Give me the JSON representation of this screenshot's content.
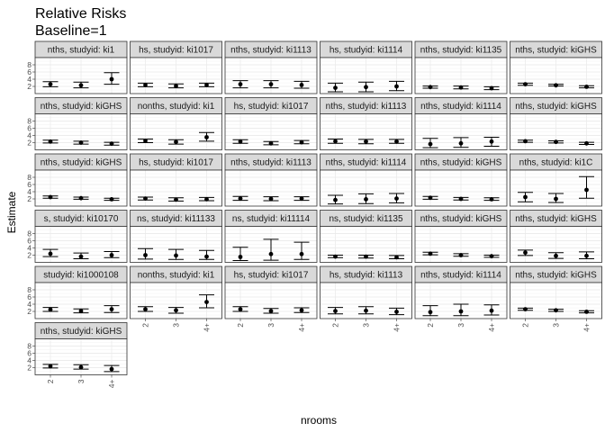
{
  "chart_data": {
    "type": "point-range-facets",
    "title": "Relative Risks",
    "subtitle": "Baseline=1",
    "xlabel": "nrooms",
    "ylabel": "Estimate",
    "categories": [
      "2",
      "3",
      "4+"
    ],
    "y_ticks": [
      "2",
      "4",
      "6",
      "8"
    ],
    "ylim": [
      0,
      10
    ],
    "grid": true,
    "panels": [
      {
        "strip": "nths, studyid: ki1",
        "estimates": [
          2.6,
          2.3,
          4.0
        ],
        "lower": [
          1.9,
          1.6,
          2.6
        ],
        "upper": [
          3.3,
          3.2,
          5.8
        ]
      },
      {
        "strip": "hs, studyid: ki1017",
        "estimates": [
          2.4,
          2.1,
          2.4
        ],
        "lower": [
          1.9,
          1.6,
          1.9
        ],
        "upper": [
          2.9,
          2.7,
          2.9
        ]
      },
      {
        "strip": "nths, studyid: ki1113",
        "estimates": [
          2.6,
          2.6,
          2.4
        ],
        "lower": [
          1.6,
          1.6,
          1.5
        ],
        "upper": [
          3.6,
          3.6,
          3.4
        ]
      },
      {
        "strip": "hs, studyid: ki1114",
        "estimates": [
          1.6,
          1.8,
          2.0
        ],
        "lower": [
          0.5,
          0.5,
          0.8
        ],
        "upper": [
          2.9,
          3.2,
          3.4
        ]
      },
      {
        "strip": "nths, studyid: ki1135",
        "estimates": [
          1.8,
          1.7,
          1.5
        ],
        "lower": [
          1.5,
          1.3,
          1.1
        ],
        "upper": [
          2.1,
          2.1,
          1.9
        ]
      },
      {
        "strip": "nths, studyid: kiGHS",
        "estimates": [
          2.6,
          2.3,
          1.9
        ],
        "lower": [
          2.3,
          2.1,
          1.6
        ],
        "upper": [
          2.9,
          2.6,
          2.2
        ]
      },
      {
        "strip": "nths, studyid: kiGHS",
        "estimates": [
          2.3,
          2.0,
          1.7
        ],
        "lower": [
          1.9,
          1.6,
          1.3
        ],
        "upper": [
          2.7,
          2.4,
          2.1
        ]
      },
      {
        "strip": "nonths, studyid: ki1",
        "estimates": [
          2.5,
          2.2,
          3.5
        ],
        "lower": [
          2.0,
          1.6,
          2.4
        ],
        "upper": [
          3.0,
          2.8,
          4.8
        ]
      },
      {
        "strip": "hs, studyid: ki1017",
        "estimates": [
          2.3,
          1.8,
          2.1
        ],
        "lower": [
          1.8,
          1.4,
          1.7
        ],
        "upper": [
          2.8,
          2.3,
          2.6
        ]
      },
      {
        "strip": "nths, studyid: ki1113",
        "estimates": [
          2.4,
          2.3,
          2.3
        ],
        "lower": [
          1.8,
          1.7,
          1.8
        ],
        "upper": [
          3.0,
          2.9,
          2.9
        ]
      },
      {
        "strip": "nths, studyid: ki1114",
        "estimates": [
          1.6,
          1.8,
          2.3
        ],
        "lower": [
          0.6,
          0.7,
          1.0
        ],
        "upper": [
          3.2,
          3.4,
          3.5
        ]
      },
      {
        "strip": "nths, studyid: kiGHS",
        "estimates": [
          2.4,
          2.2,
          1.8
        ],
        "lower": [
          2.1,
          1.9,
          1.5
        ],
        "upper": [
          2.7,
          2.5,
          2.1
        ]
      },
      {
        "strip": "nths, studyid: kiGHS",
        "estimates": [
          2.5,
          2.2,
          1.9
        ],
        "lower": [
          2.2,
          1.9,
          1.6
        ],
        "upper": [
          2.8,
          2.5,
          2.2
        ]
      },
      {
        "strip": "hs, studyid: ki1017",
        "estimates": [
          2.1,
          1.8,
          1.9
        ],
        "lower": [
          1.7,
          1.4,
          1.5
        ],
        "upper": [
          2.5,
          2.3,
          2.4
        ]
      },
      {
        "strip": "nths, studyid: ki1113",
        "estimates": [
          2.1,
          2.0,
          2.1
        ],
        "lower": [
          1.6,
          1.5,
          1.6
        ],
        "upper": [
          2.7,
          2.6,
          2.6
        ]
      },
      {
        "strip": "nths, studyid: ki1114",
        "estimates": [
          1.7,
          1.9,
          2.1
        ],
        "lower": [
          0.6,
          0.7,
          0.9
        ],
        "upper": [
          3.0,
          3.4,
          3.5
        ]
      },
      {
        "strip": "nths, studyid: kiGHS",
        "estimates": [
          2.3,
          2.0,
          1.9
        ],
        "lower": [
          1.9,
          1.7,
          1.6
        ],
        "upper": [
          2.7,
          2.4,
          2.3
        ]
      },
      {
        "strip": "nths, studyid: ki1C",
        "estimates": [
          2.5,
          2.0,
          4.5
        ],
        "lower": [
          1.2,
          1.0,
          2.2
        ],
        "upper": [
          3.8,
          3.5,
          8.2
        ]
      },
      {
        "strip": "s, studyid: ki10170",
        "estimates": [
          2.4,
          1.6,
          2.0
        ],
        "lower": [
          1.6,
          1.0,
          1.3
        ],
        "upper": [
          3.6,
          2.6,
          3.0
        ]
      },
      {
        "strip": "ns, studyid: ki11133",
        "estimates": [
          2.0,
          1.9,
          1.6
        ],
        "lower": [
          0.9,
          0.8,
          0.8
        ],
        "upper": [
          3.8,
          3.6,
          3.3
        ]
      },
      {
        "strip": "ns, studyid: ki11114",
        "estimates": [
          1.5,
          2.3,
          2.3
        ],
        "lower": [
          0.5,
          0.6,
          0.8
        ],
        "upper": [
          4.2,
          6.4,
          5.6
        ]
      },
      {
        "strip": "ns, studyid: ki1135",
        "estimates": [
          1.6,
          1.6,
          1.4
        ],
        "lower": [
          1.3,
          1.2,
          1.0
        ],
        "upper": [
          2.0,
          2.0,
          1.9
        ]
      },
      {
        "strip": "nths, studyid: kiGHS",
        "estimates": [
          2.4,
          2.0,
          1.7
        ],
        "lower": [
          2.1,
          1.7,
          1.4
        ],
        "upper": [
          2.8,
          2.4,
          2.0
        ]
      },
      {
        "strip": "nths, studyid: kiGHS",
        "estimates": [
          2.7,
          1.8,
          1.8
        ],
        "lower": [
          1.9,
          1.1,
          1.0
        ],
        "upper": [
          3.4,
          2.7,
          2.9
        ]
      },
      {
        "strip": "studyid: ki1000108",
        "estimates": [
          2.5,
          2.1,
          2.6
        ],
        "lower": [
          2.0,
          1.6,
          1.7
        ],
        "upper": [
          3.1,
          2.7,
          3.6
        ]
      },
      {
        "strip": "nonths, studyid: ki1",
        "estimates": [
          2.6,
          2.3,
          4.6
        ],
        "lower": [
          2.0,
          1.5,
          3.0
        ],
        "upper": [
          3.3,
          3.1,
          6.6
        ]
      },
      {
        "strip": "hs, studyid: ki1017",
        "estimates": [
          2.6,
          2.1,
          2.3
        ],
        "lower": [
          2.0,
          1.5,
          1.7
        ],
        "upper": [
          3.3,
          2.8,
          3.0
        ]
      },
      {
        "strip": "hs, studyid: ki1113",
        "estimates": [
          2.1,
          2.2,
          1.9
        ],
        "lower": [
          1.3,
          1.3,
          1.1
        ],
        "upper": [
          3.1,
          3.3,
          2.9
        ]
      },
      {
        "strip": "nths, studyid: ki1114",
        "estimates": [
          1.8,
          2.0,
          2.2
        ],
        "lower": [
          0.8,
          0.8,
          1.0
        ],
        "upper": [
          3.6,
          4.0,
          3.8
        ]
      },
      {
        "strip": "nths, studyid: kiGHS",
        "estimates": [
          2.6,
          2.3,
          1.9
        ],
        "lower": [
          2.3,
          2.0,
          1.6
        ],
        "upper": [
          2.9,
          2.6,
          2.2
        ]
      },
      {
        "strip": "nths, studyid: kiGHS",
        "estimates": [
          2.4,
          2.1,
          1.6
        ],
        "lower": [
          1.9,
          1.6,
          0.9
        ],
        "upper": [
          2.9,
          2.8,
          2.6
        ]
      }
    ]
  }
}
